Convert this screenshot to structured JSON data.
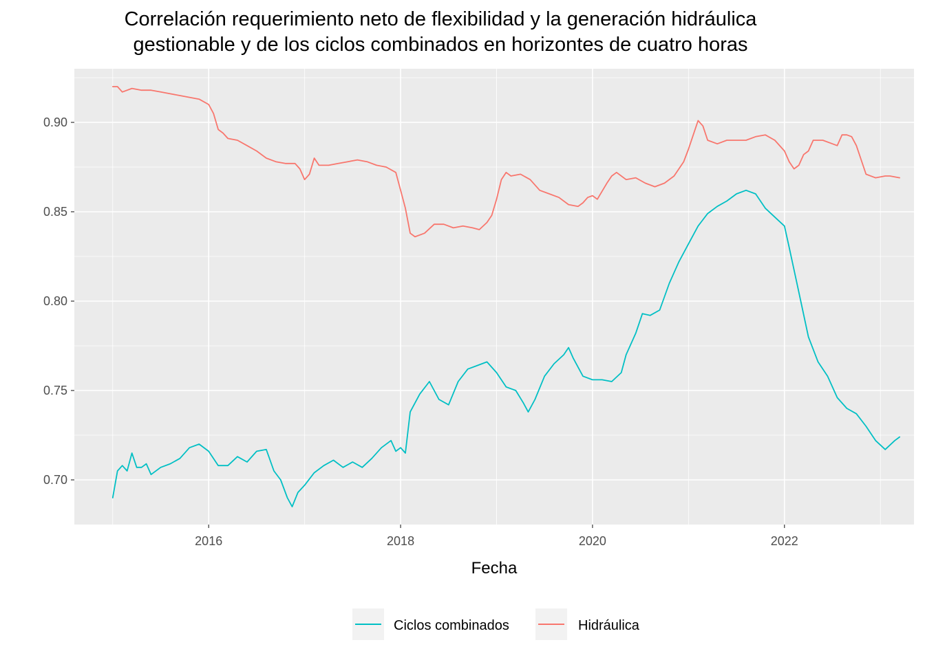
{
  "chart_data": {
    "type": "line",
    "title_lines": [
      "Correlación requerimiento neto de flexibilidad y la generación hidráulica",
      "gestionable y de los ciclos combinados en horizontes de cuatro horas"
    ],
    "xlabel": "Fecha",
    "ylabel": "",
    "xlim": [
      2014.6,
      2023.35
    ],
    "ylim": [
      0.675,
      0.93
    ],
    "x_ticks": [
      2016,
      2018,
      2020,
      2022
    ],
    "x_tick_labels": [
      "2016",
      "2018",
      "2020",
      "2022"
    ],
    "y_ticks": [
      0.7,
      0.75,
      0.8,
      0.85,
      0.9
    ],
    "y_tick_labels": [
      "0.70",
      "0.75",
      "0.80",
      "0.85",
      "0.90"
    ],
    "grid": true,
    "legend_position": "bottom",
    "series": [
      {
        "name": "Ciclos combinados",
        "color": "#00BFC4",
        "points": [
          [
            2015.0,
            0.69
          ],
          [
            2015.05,
            0.705
          ],
          [
            2015.1,
            0.708
          ],
          [
            2015.15,
            0.705
          ],
          [
            2015.2,
            0.715
          ],
          [
            2015.25,
            0.707
          ],
          [
            2015.3,
            0.707
          ],
          [
            2015.35,
            0.709
          ],
          [
            2015.4,
            0.703
          ],
          [
            2015.5,
            0.707
          ],
          [
            2015.6,
            0.709
          ],
          [
            2015.7,
            0.712
          ],
          [
            2015.8,
            0.718
          ],
          [
            2015.9,
            0.72
          ],
          [
            2016.0,
            0.716
          ],
          [
            2016.1,
            0.708
          ],
          [
            2016.2,
            0.708
          ],
          [
            2016.3,
            0.713
          ],
          [
            2016.4,
            0.71
          ],
          [
            2016.5,
            0.716
          ],
          [
            2016.6,
            0.717
          ],
          [
            2016.68,
            0.705
          ],
          [
            2016.75,
            0.7
          ],
          [
            2016.82,
            0.69
          ],
          [
            2016.87,
            0.685
          ],
          [
            2016.93,
            0.693
          ],
          [
            2017.0,
            0.697
          ],
          [
            2017.1,
            0.704
          ],
          [
            2017.2,
            0.708
          ],
          [
            2017.3,
            0.711
          ],
          [
            2017.4,
            0.707
          ],
          [
            2017.5,
            0.71
          ],
          [
            2017.6,
            0.707
          ],
          [
            2017.7,
            0.712
          ],
          [
            2017.8,
            0.718
          ],
          [
            2017.9,
            0.722
          ],
          [
            2017.95,
            0.716
          ],
          [
            2018.0,
            0.718
          ],
          [
            2018.05,
            0.715
          ],
          [
            2018.1,
            0.738
          ],
          [
            2018.2,
            0.748
          ],
          [
            2018.3,
            0.755
          ],
          [
            2018.4,
            0.745
          ],
          [
            2018.5,
            0.742
          ],
          [
            2018.6,
            0.755
          ],
          [
            2018.7,
            0.762
          ],
          [
            2018.8,
            0.764
          ],
          [
            2018.9,
            0.766
          ],
          [
            2019.0,
            0.76
          ],
          [
            2019.1,
            0.752
          ],
          [
            2019.2,
            0.75
          ],
          [
            2019.28,
            0.743
          ],
          [
            2019.33,
            0.738
          ],
          [
            2019.4,
            0.745
          ],
          [
            2019.5,
            0.758
          ],
          [
            2019.6,
            0.765
          ],
          [
            2019.7,
            0.77
          ],
          [
            2019.75,
            0.774
          ],
          [
            2019.8,
            0.768
          ],
          [
            2019.9,
            0.758
          ],
          [
            2020.0,
            0.756
          ],
          [
            2020.1,
            0.756
          ],
          [
            2020.2,
            0.755
          ],
          [
            2020.3,
            0.76
          ],
          [
            2020.35,
            0.77
          ],
          [
            2020.45,
            0.782
          ],
          [
            2020.52,
            0.793
          ],
          [
            2020.6,
            0.792
          ],
          [
            2020.7,
            0.795
          ],
          [
            2020.8,
            0.81
          ],
          [
            2020.9,
            0.822
          ],
          [
            2021.0,
            0.832
          ],
          [
            2021.1,
            0.842
          ],
          [
            2021.2,
            0.849
          ],
          [
            2021.3,
            0.853
          ],
          [
            2021.4,
            0.856
          ],
          [
            2021.5,
            0.86
          ],
          [
            2021.6,
            0.862
          ],
          [
            2021.7,
            0.86
          ],
          [
            2021.8,
            0.852
          ],
          [
            2021.9,
            0.847
          ],
          [
            2022.0,
            0.842
          ],
          [
            2022.05,
            0.83
          ],
          [
            2022.15,
            0.805
          ],
          [
            2022.25,
            0.78
          ],
          [
            2022.35,
            0.766
          ],
          [
            2022.45,
            0.758
          ],
          [
            2022.55,
            0.746
          ],
          [
            2022.65,
            0.74
          ],
          [
            2022.75,
            0.737
          ],
          [
            2022.85,
            0.73
          ],
          [
            2022.95,
            0.722
          ],
          [
            2023.05,
            0.717
          ],
          [
            2023.15,
            0.722
          ],
          [
            2023.2,
            0.724
          ]
        ]
      },
      {
        "name": "Hidráulica",
        "color": "#F8766D",
        "points": [
          [
            2015.0,
            0.92
          ],
          [
            2015.05,
            0.92
          ],
          [
            2015.1,
            0.917
          ],
          [
            2015.2,
            0.919
          ],
          [
            2015.3,
            0.918
          ],
          [
            2015.4,
            0.918
          ],
          [
            2015.5,
            0.917
          ],
          [
            2015.6,
            0.916
          ],
          [
            2015.7,
            0.915
          ],
          [
            2015.8,
            0.914
          ],
          [
            2015.9,
            0.913
          ],
          [
            2016.0,
            0.91
          ],
          [
            2016.05,
            0.905
          ],
          [
            2016.1,
            0.896
          ],
          [
            2016.15,
            0.894
          ],
          [
            2016.2,
            0.891
          ],
          [
            2016.3,
            0.89
          ],
          [
            2016.4,
            0.887
          ],
          [
            2016.5,
            0.884
          ],
          [
            2016.6,
            0.88
          ],
          [
            2016.7,
            0.878
          ],
          [
            2016.8,
            0.877
          ],
          [
            2016.9,
            0.877
          ],
          [
            2016.95,
            0.874
          ],
          [
            2017.0,
            0.868
          ],
          [
            2017.05,
            0.871
          ],
          [
            2017.1,
            0.88
          ],
          [
            2017.15,
            0.876
          ],
          [
            2017.25,
            0.876
          ],
          [
            2017.35,
            0.877
          ],
          [
            2017.45,
            0.878
          ],
          [
            2017.55,
            0.879
          ],
          [
            2017.65,
            0.878
          ],
          [
            2017.75,
            0.876
          ],
          [
            2017.85,
            0.875
          ],
          [
            2017.95,
            0.872
          ],
          [
            2018.0,
            0.862
          ],
          [
            2018.05,
            0.852
          ],
          [
            2018.1,
            0.838
          ],
          [
            2018.15,
            0.836
          ],
          [
            2018.25,
            0.838
          ],
          [
            2018.35,
            0.843
          ],
          [
            2018.45,
            0.843
          ],
          [
            2018.55,
            0.841
          ],
          [
            2018.65,
            0.842
          ],
          [
            2018.75,
            0.841
          ],
          [
            2018.82,
            0.84
          ],
          [
            2018.9,
            0.844
          ],
          [
            2018.95,
            0.848
          ],
          [
            2019.0,
            0.857
          ],
          [
            2019.05,
            0.868
          ],
          [
            2019.1,
            0.872
          ],
          [
            2019.15,
            0.87
          ],
          [
            2019.25,
            0.871
          ],
          [
            2019.35,
            0.868
          ],
          [
            2019.45,
            0.862
          ],
          [
            2019.55,
            0.86
          ],
          [
            2019.65,
            0.858
          ],
          [
            2019.75,
            0.854
          ],
          [
            2019.85,
            0.853
          ],
          [
            2019.9,
            0.855
          ],
          [
            2019.95,
            0.858
          ],
          [
            2020.0,
            0.859
          ],
          [
            2020.05,
            0.857
          ],
          [
            2020.15,
            0.866
          ],
          [
            2020.2,
            0.87
          ],
          [
            2020.25,
            0.872
          ],
          [
            2020.35,
            0.868
          ],
          [
            2020.45,
            0.869
          ],
          [
            2020.55,
            0.866
          ],
          [
            2020.65,
            0.864
          ],
          [
            2020.75,
            0.866
          ],
          [
            2020.85,
            0.87
          ],
          [
            2020.95,
            0.878
          ],
          [
            2021.0,
            0.885
          ],
          [
            2021.05,
            0.893
          ],
          [
            2021.1,
            0.901
          ],
          [
            2021.15,
            0.898
          ],
          [
            2021.2,
            0.89
          ],
          [
            2021.3,
            0.888
          ],
          [
            2021.4,
            0.89
          ],
          [
            2021.5,
            0.89
          ],
          [
            2021.6,
            0.89
          ],
          [
            2021.7,
            0.892
          ],
          [
            2021.8,
            0.893
          ],
          [
            2021.9,
            0.89
          ],
          [
            2022.0,
            0.884
          ],
          [
            2022.05,
            0.878
          ],
          [
            2022.1,
            0.874
          ],
          [
            2022.15,
            0.876
          ],
          [
            2022.2,
            0.882
          ],
          [
            2022.25,
            0.884
          ],
          [
            2022.3,
            0.89
          ],
          [
            2022.4,
            0.89
          ],
          [
            2022.5,
            0.888
          ],
          [
            2022.55,
            0.887
          ],
          [
            2022.6,
            0.893
          ],
          [
            2022.65,
            0.893
          ],
          [
            2022.7,
            0.892
          ],
          [
            2022.75,
            0.887
          ],
          [
            2022.8,
            0.879
          ],
          [
            2022.85,
            0.871
          ],
          [
            2022.95,
            0.869
          ],
          [
            2023.05,
            0.87
          ],
          [
            2023.1,
            0.87
          ],
          [
            2023.2,
            0.869
          ]
        ]
      }
    ]
  }
}
